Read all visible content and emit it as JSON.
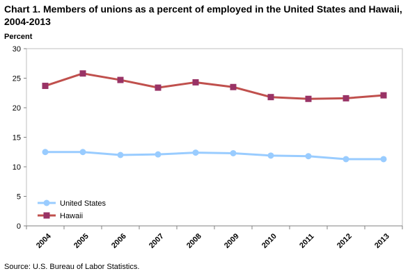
{
  "chart_data": {
    "type": "line",
    "title": "Chart 1. Members of unions as a percent of employed in the United States and Hawaii, 2004-2013",
    "ylabel": "Percent",
    "xlabel": "",
    "categories": [
      "2004",
      "2005",
      "2006",
      "2007",
      "2008",
      "2009",
      "2010",
      "2011",
      "2012",
      "2013"
    ],
    "ylim": [
      0,
      30
    ],
    "yticks": [
      0,
      5,
      10,
      15,
      20,
      25,
      30
    ],
    "grid": false,
    "legend_position": "bottom-left",
    "series": [
      {
        "name": "United States",
        "color": "#99ccff",
        "marker": "circle",
        "values": [
          12.5,
          12.5,
          12.0,
          12.1,
          12.4,
          12.3,
          11.9,
          11.8,
          11.3,
          11.3
        ]
      },
      {
        "name": "Hawaii",
        "color": "#c0504d",
        "marker_color": "#993366",
        "marker": "square",
        "values": [
          23.7,
          25.8,
          24.7,
          23.4,
          24.3,
          23.5,
          21.8,
          21.5,
          21.6,
          22.1
        ]
      }
    ]
  },
  "source": "Source: U.S. Bureau of Labor Statistics."
}
